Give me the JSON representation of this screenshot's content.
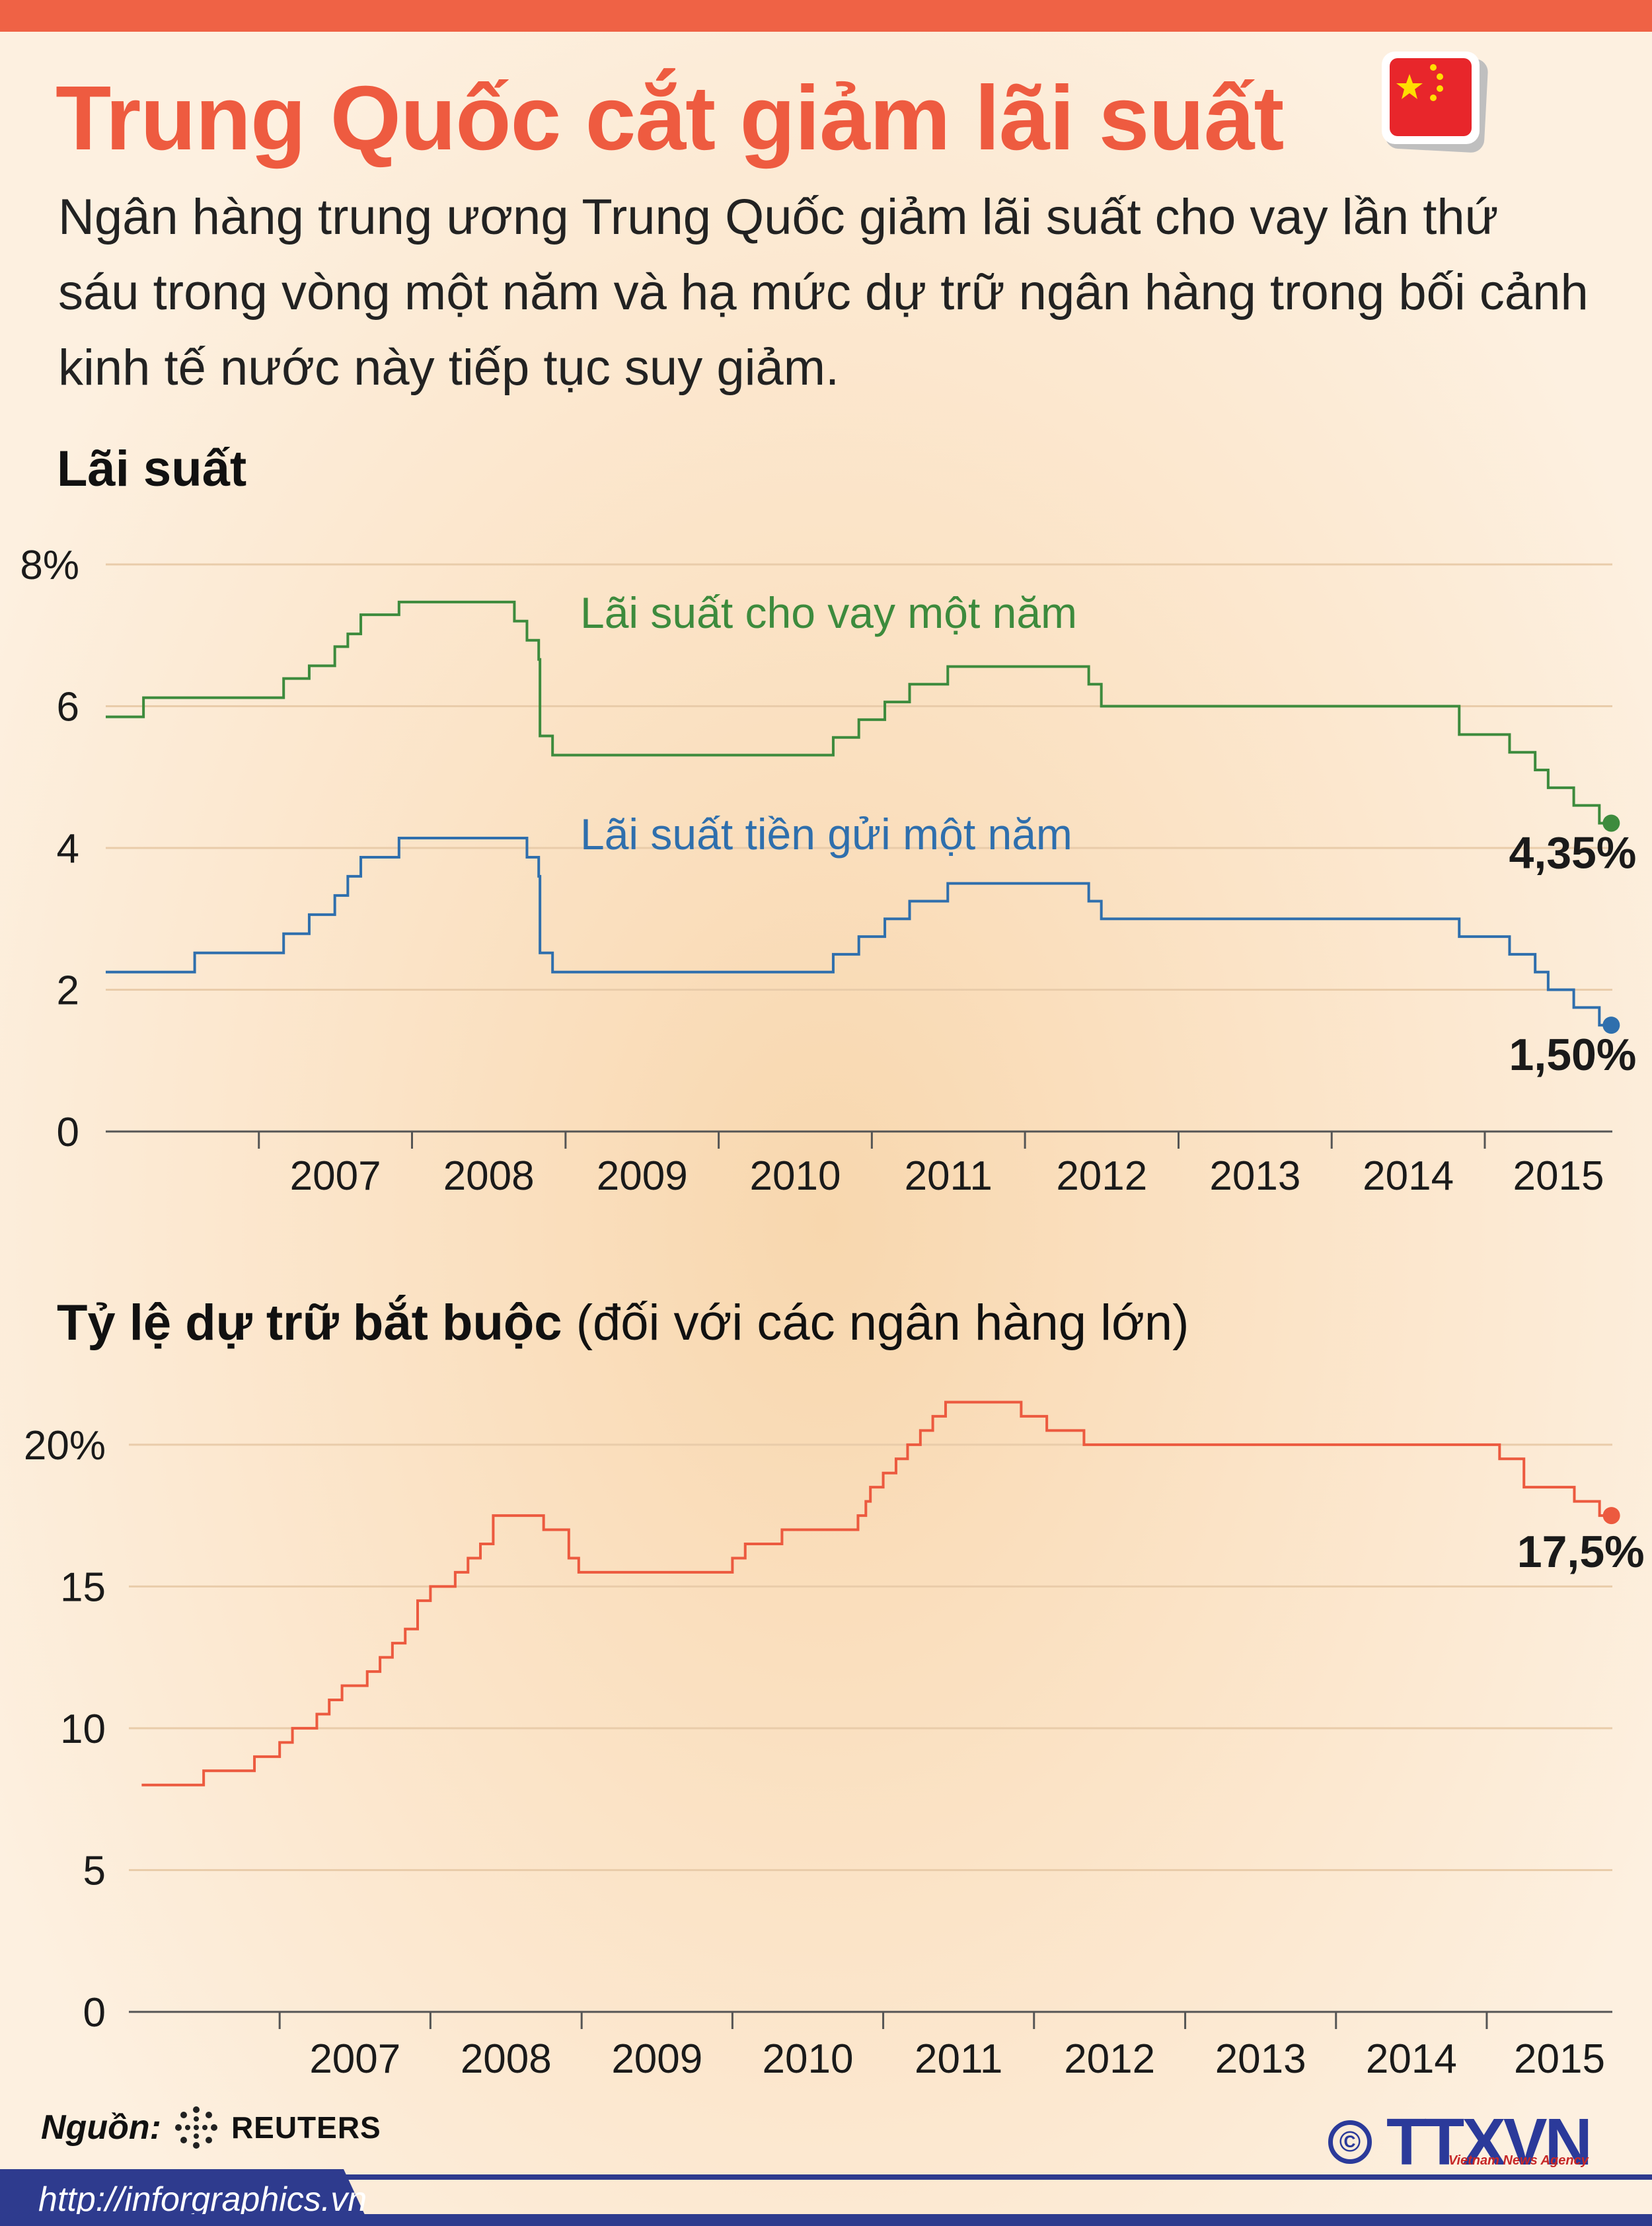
{
  "header": {
    "title": "Trung Quốc cắt giảm lãi suất",
    "subtitle": "Ngân hàng trung ương Trung Quốc giảm lãi suất cho vay lần thứ sáu trong vòng một năm và hạ mức dự trữ ngân hàng trong bối cảnh kinh tế nước này tiếp tục suy giảm."
  },
  "section1": {
    "title": "Lãi suất"
  },
  "section2": {
    "title_bold": "Tỷ lệ dự trữ bắt buộc",
    "title_rest": " (đối với các ngân hàng lớn)"
  },
  "footer": {
    "source_label": "Nguồn:",
    "source_name": "REUTERS",
    "url": "http://inforgraphics.vn",
    "logo_text": "TTXVN",
    "logo_sub": "Vietnam News Agency",
    "copyright": "©"
  },
  "colors": {
    "accent": "#ee5b40",
    "loan": "#3d8b3d",
    "deposit": "#2f6fad",
    "reserve": "#ec5a3f",
    "footer": "#2e3b8e"
  },
  "chart_data": [
    {
      "type": "line",
      "x_type": "date",
      "ylim": [
        0,
        8
      ],
      "y_ticks": [
        0,
        2,
        4,
        6,
        8
      ],
      "y_tick_labels": [
        "0",
        "2",
        "4",
        "6",
        "8%"
      ],
      "x_range": [
        "2006-01",
        "2015-11"
      ],
      "x_ticks": [
        "2007",
        "2008",
        "2009",
        "2010",
        "2011",
        "2012",
        "2013",
        "2014",
        "2015"
      ],
      "grid": true,
      "series": [
        {
          "name": "Lãi suất cho vay một năm",
          "color": "#3d8b3d",
          "end_label": "4,35%",
          "points": [
            [
              "2006-01",
              5.85
            ],
            [
              "2006-04",
              6.12
            ],
            [
              "2006-08",
              6.12
            ],
            [
              "2007-03",
              6.39
            ],
            [
              "2007-05",
              6.57
            ],
            [
              "2007-07",
              6.84
            ],
            [
              "2007-08",
              7.02
            ],
            [
              "2007-09",
              7.29
            ],
            [
              "2007-12",
              7.47
            ],
            [
              "2008-09",
              7.2
            ],
            [
              "2008-10",
              6.93
            ],
            [
              "2008-10-29",
              6.66
            ],
            [
              "2008-11",
              5.58
            ],
            [
              "2008-12",
              5.31
            ],
            [
              "2010-10",
              5.56
            ],
            [
              "2010-12",
              5.81
            ],
            [
              "2011-02",
              6.06
            ],
            [
              "2011-04",
              6.31
            ],
            [
              "2011-07",
              6.56
            ],
            [
              "2012-06",
              6.31
            ],
            [
              "2012-07",
              6.0
            ],
            [
              "2014-11",
              5.6
            ],
            [
              "2015-03",
              5.35
            ],
            [
              "2015-05",
              5.1
            ],
            [
              "2015-06",
              4.85
            ],
            [
              "2015-08",
              4.6
            ],
            [
              "2015-10",
              4.35
            ]
          ]
        },
        {
          "name": "Lãi suất tiền gửi một năm",
          "color": "#2f6fad",
          "end_label": "1,50%",
          "points": [
            [
              "2006-01",
              2.25
            ],
            [
              "2006-08",
              2.52
            ],
            [
              "2007-03",
              2.79
            ],
            [
              "2007-05",
              3.06
            ],
            [
              "2007-07",
              3.33
            ],
            [
              "2007-08",
              3.6
            ],
            [
              "2007-09",
              3.87
            ],
            [
              "2007-12",
              4.14
            ],
            [
              "2008-10",
              3.87
            ],
            [
              "2008-10-29",
              3.6
            ],
            [
              "2008-11",
              2.52
            ],
            [
              "2008-12",
              2.25
            ],
            [
              "2010-10",
              2.5
            ],
            [
              "2010-12",
              2.75
            ],
            [
              "2011-02",
              3.0
            ],
            [
              "2011-04",
              3.25
            ],
            [
              "2011-07",
              3.5
            ],
            [
              "2012-06",
              3.25
            ],
            [
              "2012-07",
              3.0
            ],
            [
              "2014-11",
              2.75
            ],
            [
              "2015-03",
              2.5
            ],
            [
              "2015-05",
              2.25
            ],
            [
              "2015-06",
              2.0
            ],
            [
              "2015-08",
              1.75
            ],
            [
              "2015-10",
              1.5
            ]
          ]
        }
      ]
    },
    {
      "type": "line",
      "x_type": "date",
      "ylim": [
        0,
        22
      ],
      "y_ticks": [
        0,
        5,
        10,
        15,
        20
      ],
      "y_tick_labels": [
        "0",
        "5",
        "10",
        "15",
        "20%"
      ],
      "x_range": [
        "2006-01",
        "2015-11"
      ],
      "x_ticks": [
        "2007",
        "2008",
        "2009",
        "2010",
        "2011",
        "2012",
        "2013",
        "2014",
        "2015"
      ],
      "grid": true,
      "series": [
        {
          "name": "Tỷ lệ dự trữ bắt buộc",
          "color": "#ec5a3f",
          "end_label": "17,5%",
          "points": [
            [
              "2006-02",
              8.0
            ],
            [
              "2006-07",
              8.5
            ],
            [
              "2006-11",
              9.0
            ],
            [
              "2007-01",
              9.5
            ],
            [
              "2007-02",
              10.0
            ],
            [
              "2007-04",
              10.5
            ],
            [
              "2007-05",
              11.0
            ],
            [
              "2007-06",
              11.5
            ],
            [
              "2007-08",
              12.0
            ],
            [
              "2007-09",
              12.5
            ],
            [
              "2007-10",
              13.0
            ],
            [
              "2007-11",
              13.5
            ],
            [
              "2007-12",
              14.5
            ],
            [
              "2008-01",
              15.0
            ],
            [
              "2008-03",
              15.5
            ],
            [
              "2008-04",
              16.0
            ],
            [
              "2008-05",
              16.5
            ],
            [
              "2008-06",
              17.5
            ],
            [
              "2008-10",
              17.0
            ],
            [
              "2008-12",
              16.0
            ],
            [
              "2008-12-25",
              15.5
            ],
            [
              "2010-01",
              16.0
            ],
            [
              "2010-02",
              16.5
            ],
            [
              "2010-05",
              17.0
            ],
            [
              "2010-11",
              17.5
            ],
            [
              "2010-11-20",
              18.0
            ],
            [
              "2010-12",
              18.5
            ],
            [
              "2011-01",
              19.0
            ],
            [
              "2011-02",
              19.5
            ],
            [
              "2011-03",
              20.0
            ],
            [
              "2011-04",
              20.5
            ],
            [
              "2011-05",
              21.0
            ],
            [
              "2011-06",
              21.5
            ],
            [
              "2011-12",
              21.0
            ],
            [
              "2012-02",
              20.5
            ],
            [
              "2012-05",
              20.0
            ],
            [
              "2015-02",
              19.5
            ],
            [
              "2015-04",
              18.5
            ],
            [
              "2015-08",
              18.0
            ],
            [
              "2015-10",
              17.5
            ]
          ]
        }
      ]
    }
  ]
}
